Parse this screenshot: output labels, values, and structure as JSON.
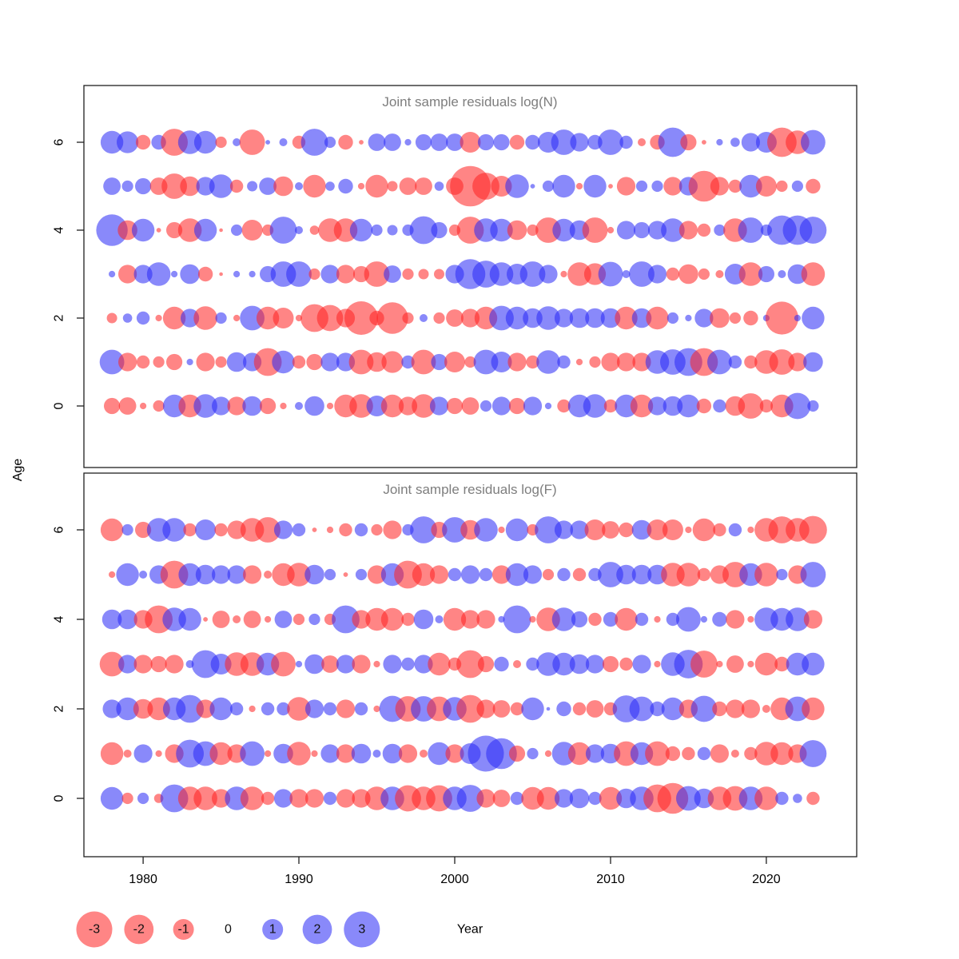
{
  "axes": {
    "xlabel": "Year",
    "ylabel": "Age",
    "x_ticks": [
      1980,
      1990,
      2000,
      2010,
      2020
    ],
    "y_ticks": [
      0,
      2,
      4,
      6
    ]
  },
  "legend": {
    "values": [
      -3,
      -2,
      -1,
      0,
      1,
      2,
      3
    ]
  },
  "colors": {
    "negative": "rgba(255,32,32,0.55)",
    "positive": "rgba(40,40,245,0.55)",
    "title": "#7e7e7e",
    "axis": "#1f1f1f"
  },
  "chart_data": [
    {
      "type": "bubble",
      "title": "Joint sample residuals log(N)",
      "xlabel": "Year",
      "ylabel": "Age",
      "xlim": [
        1976.2,
        2025.8
      ],
      "ylim": [
        -1.4,
        7.3
      ],
      "size_scale": {
        "radius_px_per_sqrt_unit": 13
      },
      "years": [
        1978,
        1979,
        1980,
        1981,
        1982,
        1983,
        1984,
        1985,
        1986,
        1987,
        1988,
        1989,
        1990,
        1991,
        1992,
        1993,
        1994,
        1995,
        1996,
        1997,
        1998,
        1999,
        2000,
        2001,
        2002,
        2003,
        2004,
        2005,
        2006,
        2007,
        2008,
        2009,
        2010,
        2011,
        2012,
        2013,
        2014,
        2015,
        2016,
        2017,
        2018,
        2019,
        2020,
        2021,
        2022,
        2023
      ],
      "series": [
        {
          "age": 6,
          "values": [
            1.2,
            1.1,
            -0.5,
            0.5,
            -1.7,
            1.3,
            1.2,
            -0.3,
            0.15,
            -1.5,
            0.05,
            0.15,
            -0.4,
            1.7,
            0.3,
            -0.5,
            -0.05,
            0.7,
            0.7,
            0.1,
            0.6,
            0.7,
            0.7,
            -1.0,
            0.6,
            0.6,
            -0.5,
            0.5,
            1.0,
            1.5,
            0.8,
            0.5,
            1.5,
            0.4,
            -0.15,
            -0.5,
            2.0,
            -0.6,
            -0.05,
            0.1,
            0.2,
            0.8,
            1.0,
            -2.0,
            -1.3,
            1.4
          ]
        },
        {
          "age": 5,
          "values": [
            0.7,
            0.3,
            0.6,
            -0.7,
            -1.5,
            -0.9,
            0.8,
            1.3,
            -0.4,
            0.25,
            0.7,
            -0.9,
            0.15,
            -1.2,
            0.2,
            0.5,
            -0.1,
            -1.2,
            -0.25,
            -0.7,
            -0.7,
            0.2,
            -0.7,
            -3.8,
            -1.7,
            -1.0,
            1.3,
            0.05,
            0.3,
            1.2,
            -0.1,
            1.2,
            -0.05,
            -0.8,
            0.3,
            0.3,
            -0.8,
            0.8,
            -2.2,
            -0.8,
            -0.4,
            1.2,
            -1.0,
            -0.3,
            0.3,
            -0.5
          ]
        },
        {
          "age": 4,
          "values": [
            2.3,
            -0.9,
            1.2,
            -0.05,
            -0.6,
            -1.3,
            1.2,
            -0.03,
            0.3,
            -1.0,
            -0.3,
            1.7,
            0.15,
            -0.2,
            -1.3,
            -1.3,
            1.2,
            0.3,
            0.25,
            0.3,
            1.8,
            0.6,
            -0.3,
            -1.7,
            1.3,
            1.2,
            -0.9,
            -0.3,
            -1.5,
            1.2,
            0.9,
            -1.5,
            -0.1,
            0.8,
            0.6,
            0.8,
            1.3,
            -0.8,
            -0.4,
            0.3,
            -1.3,
            1.5,
            0.3,
            2.0,
            2.0,
            1.7
          ]
        },
        {
          "age": 3,
          "values": [
            0.1,
            -0.8,
            0.8,
            1.3,
            0.1,
            0.9,
            -0.5,
            -0.03,
            0.1,
            0.1,
            0.6,
            1.5,
            1.5,
            -0.3,
            0.8,
            -0.8,
            -0.6,
            -1.5,
            0.7,
            -0.3,
            -0.25,
            -0.25,
            0.8,
            2.1,
            1.7,
            1.3,
            1.0,
            1.5,
            0.8,
            -0.1,
            -1.3,
            -1.1,
            1.4,
            0.15,
            1.5,
            0.8,
            -0.4,
            -0.9,
            -0.3,
            -0.15,
            1.0,
            -1.3,
            0.6,
            0.15,
            0.9,
            -1.3
          ]
        },
        {
          "age": 2,
          "values": [
            -0.25,
            0.2,
            0.4,
            -0.1,
            -1.2,
            0.8,
            -1.3,
            0.3,
            -0.1,
            1.4,
            -1.2,
            -1.0,
            -0.1,
            -1.8,
            -1.6,
            -0.8,
            -2.6,
            -0.5,
            -2.3,
            -0.3,
            0.15,
            -0.3,
            -0.7,
            -0.8,
            -1.2,
            1.4,
            1.2,
            0.9,
            1.3,
            0.8,
            0.9,
            0.9,
            0.9,
            -1.2,
            0.9,
            -1.2,
            0.3,
            0.1,
            0.8,
            -0.9,
            -0.3,
            -0.5,
            0.1,
            -2.5,
            0.1,
            1.2
          ]
        },
        {
          "age": 1,
          "values": [
            1.4,
            -0.8,
            -0.4,
            -0.3,
            -0.6,
            0.1,
            -0.8,
            -0.3,
            0.9,
            0.8,
            -1.8,
            1.2,
            -0.4,
            -0.6,
            0.8,
            0.8,
            -1.4,
            -0.9,
            -1.1,
            0.4,
            -1.4,
            0.6,
            -1.0,
            -0.3,
            1.4,
            1.0,
            -0.8,
            -0.4,
            1.3,
            0.4,
            -0.1,
            -0.3,
            -0.8,
            -0.8,
            -0.8,
            1.3,
            1.5,
            1.8,
            -1.8,
            1.4,
            0.4,
            -0.4,
            -1.3,
            -1.5,
            -0.8,
            0.9
          ]
        },
        {
          "age": 0,
          "values": [
            -0.6,
            -0.7,
            -0.1,
            -0.3,
            1.2,
            -1.2,
            1.3,
            0.8,
            -0.8,
            0.9,
            -0.6,
            -0.1,
            0.15,
            0.9,
            -0.1,
            -1.2,
            -1.3,
            1.0,
            -1.2,
            -0.8,
            -1.3,
            0.8,
            -0.6,
            -0.7,
            0.3,
            0.8,
            -0.6,
            0.8,
            0.1,
            -0.4,
            1.2,
            1.3,
            -0.4,
            1.2,
            -1.2,
            0.8,
            0.9,
            1.2,
            -0.5,
            0.4,
            -0.9,
            -1.5,
            -0.4,
            -1.2,
            1.6,
            0.3
          ]
        }
      ]
    },
    {
      "type": "bubble",
      "title": "Joint sample residuals log(F)",
      "xlabel": "Year",
      "ylabel": "Age",
      "xlim": [
        1976.2,
        2025.8
      ],
      "ylim": [
        -1.4,
        7.3
      ],
      "size_scale": {
        "radius_px_per_sqrt_unit": 13
      },
      "years": [
        1978,
        1979,
        1980,
        1981,
        1982,
        1983,
        1984,
        1985,
        1986,
        1987,
        1988,
        1989,
        1990,
        1991,
        1992,
        1993,
        1994,
        1995,
        1996,
        1997,
        1998,
        1999,
        2000,
        2001,
        2002,
        2003,
        2004,
        2005,
        2006,
        2007,
        2008,
        2009,
        2010,
        2011,
        2012,
        2013,
        2014,
        2015,
        2016,
        2017,
        2018,
        2019,
        2020,
        2021,
        2022,
        2023
      ],
      "series": [
        {
          "age": 6,
          "values": [
            -1.2,
            0.3,
            -0.6,
            1.3,
            1.3,
            -0.4,
            1.0,
            -0.4,
            -0.8,
            -1.3,
            -1.5,
            0.8,
            0.4,
            -0.05,
            -0.1,
            -0.4,
            0.4,
            -0.3,
            -0.8,
            0.3,
            1.7,
            -0.6,
            1.5,
            -0.9,
            1.3,
            -0.1,
            1.2,
            -0.3,
            1.7,
            0.8,
            0.8,
            -1.0,
            -0.7,
            -0.5,
            0.9,
            -1.0,
            -1.0,
            -0.1,
            -1.2,
            -0.4,
            0.4,
            -0.1,
            -1.3,
            -1.7,
            -1.3,
            -1.8
          ]
        },
        {
          "age": 5,
          "values": [
            -0.1,
            1.2,
            0.15,
            0.8,
            -1.8,
            1.2,
            0.9,
            0.8,
            0.8,
            -0.8,
            -0.15,
            -1.2,
            -1.3,
            0.9,
            0.3,
            -0.05,
            0.3,
            -0.8,
            1.2,
            -1.8,
            -1.2,
            -0.8,
            0.4,
            0.8,
            0.4,
            -0.8,
            1.2,
            0.8,
            -0.3,
            0.4,
            -0.4,
            0.4,
            1.5,
            0.9,
            0.9,
            0.9,
            -1.3,
            -1.3,
            -0.4,
            -0.8,
            -1.5,
            1.2,
            -1.3,
            0.3,
            -0.8,
            1.5
          ]
        },
        {
          "age": 4,
          "values": [
            0.9,
            0.9,
            -0.8,
            -1.8,
            1.3,
            1.2,
            -0.05,
            -0.7,
            -0.15,
            -0.7,
            -0.1,
            0.7,
            -0.3,
            0.3,
            -0.3,
            1.8,
            -0.8,
            -1.2,
            -1.2,
            -0.4,
            0.9,
            0.15,
            -1.2,
            -0.8,
            -0.8,
            0.1,
            1.8,
            -0.1,
            -1.3,
            1.3,
            0.6,
            -0.4,
            0.5,
            -1.2,
            0.4,
            -0.1,
            0.4,
            1.4,
            0.1,
            0.5,
            -0.8,
            -0.1,
            1.3,
            1.2,
            1.3,
            -0.8
          ]
        },
        {
          "age": 3,
          "values": [
            -1.4,
            0.8,
            -0.8,
            -0.6,
            -0.8,
            0.15,
            1.8,
            1.0,
            -1.3,
            -1.3,
            1.2,
            -1.4,
            0.1,
            0.9,
            -0.7,
            0.8,
            -0.8,
            -0.1,
            0.8,
            0.4,
            0.8,
            -1.2,
            -0.4,
            -1.8,
            -0.6,
            0.5,
            -0.15,
            0.4,
            1.3,
            1.2,
            0.9,
            0.8,
            -0.6,
            -0.4,
            0.8,
            -0.1,
            1.3,
            1.9,
            -1.7,
            -0.1,
            -0.7,
            -0.1,
            -1.2,
            -0.5,
            1.2,
            1.2
          ]
        },
        {
          "age": 2,
          "values": [
            0.8,
            1.2,
            -0.9,
            -1.2,
            1.2,
            1.8,
            -0.8,
            1.2,
            0.4,
            -0.1,
            0.4,
            0.4,
            -1.3,
            0.8,
            0.4,
            -0.8,
            0.4,
            -0.1,
            1.6,
            -1.5,
            1.5,
            -1.4,
            1.3,
            -1.8,
            -0.8,
            -0.7,
            -0.4,
            1.2,
            0.03,
            0.5,
            -0.4,
            -0.7,
            -0.4,
            1.7,
            1.4,
            0.5,
            1.2,
            -0.8,
            1.6,
            -0.5,
            -0.8,
            -0.8,
            -0.15,
            -1.2,
            1.4,
            -1.2
          ]
        },
        {
          "age": 1,
          "values": [
            -1.2,
            -0.15,
            0.8,
            -0.1,
            -0.8,
            1.8,
            1.4,
            -1.2,
            -0.8,
            1.4,
            -0.1,
            0.9,
            -1.3,
            -0.1,
            0.8,
            -0.8,
            0.9,
            0.15,
            0.9,
            -0.8,
            -0.15,
            1.2,
            -0.8,
            1.0,
            3.0,
            2.2,
            -0.6,
            0.3,
            -0.1,
            1.3,
            -1.2,
            0.8,
            0.9,
            -1.4,
            1.2,
            -1.4,
            -0.5,
            -0.4,
            0.4,
            -0.8,
            -0.15,
            -0.4,
            -1.3,
            -1.2,
            -0.8,
            1.7
          ]
        },
        {
          "age": 0,
          "values": [
            1.2,
            -0.3,
            0.3,
            -0.2,
            1.8,
            -1.3,
            -1.3,
            -0.8,
            1.3,
            -1.3,
            -0.4,
            0.8,
            -0.8,
            -0.8,
            0.4,
            -0.8,
            -0.8,
            -1.3,
            1.3,
            -1.6,
            -1.3,
            -1.6,
            1.3,
            1.7,
            -0.8,
            -0.7,
            0.4,
            -1.2,
            -1.2,
            0.8,
            0.9,
            0.4,
            -1.2,
            0.9,
            1.3,
            -1.8,
            -2.2,
            1.4,
            0.9,
            -1.3,
            -1.4,
            1.3,
            -1.3,
            0.4,
            0.2,
            -0.4
          ]
        }
      ]
    }
  ]
}
